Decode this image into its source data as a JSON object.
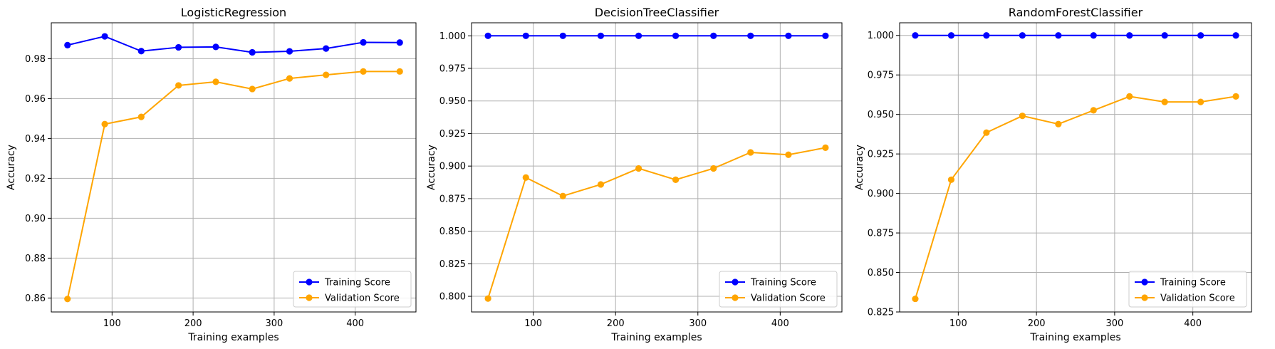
{
  "chart_data": [
    {
      "type": "line",
      "title": "LogisticRegression",
      "xlabel": "Training examples",
      "ylabel": "Accuracy",
      "x": [
        45,
        91,
        136,
        182,
        228,
        273,
        319,
        364,
        410,
        455
      ],
      "series": [
        {
          "name": "Training Score",
          "color": "#0000ff",
          "values": [
            0.9868,
            0.9912,
            0.9838,
            0.9857,
            0.9859,
            0.9832,
            0.9837,
            0.9851,
            0.9882,
            0.9881
          ]
        },
        {
          "name": "Validation Score",
          "color": "#ffa500",
          "values": [
            0.8595,
            0.9472,
            0.9508,
            0.9666,
            0.9684,
            0.9648,
            0.9701,
            0.9719,
            0.9736,
            0.9736
          ]
        }
      ],
      "xlim": [
        25,
        475
      ],
      "ylim": [
        0.853,
        0.998
      ],
      "xticks": [
        100,
        200,
        300,
        400
      ],
      "yticks": [
        0.86,
        0.88,
        0.9,
        0.92,
        0.94,
        0.96,
        0.98
      ],
      "ytick_labels": [
        "0.86",
        "0.88",
        "0.90",
        "0.92",
        "0.94",
        "0.96",
        "0.98"
      ],
      "grid": true,
      "legend_position": "lower-right"
    },
    {
      "type": "line",
      "title": "DecisionTreeClassifier",
      "xlabel": "Training examples",
      "ylabel": "Accuracy",
      "x": [
        45,
        91,
        136,
        182,
        228,
        273,
        319,
        364,
        410,
        455
      ],
      "series": [
        {
          "name": "Training Score",
          "color": "#0000ff",
          "values": [
            1.0,
            1.0,
            1.0,
            1.0,
            1.0,
            1.0,
            1.0,
            1.0,
            1.0,
            1.0
          ]
        },
        {
          "name": "Validation Score",
          "color": "#ffa500",
          "values": [
            0.7983,
            0.8912,
            0.877,
            0.8859,
            0.8982,
            0.8895,
            0.8982,
            0.9105,
            0.9087,
            0.9141
          ]
        }
      ],
      "xlim": [
        25,
        475
      ],
      "ylim": [
        0.788,
        1.01
      ],
      "xticks": [
        100,
        200,
        300,
        400
      ],
      "yticks": [
        0.8,
        0.825,
        0.85,
        0.875,
        0.9,
        0.925,
        0.95,
        0.975,
        1.0
      ],
      "ytick_labels": [
        "0.800",
        "0.825",
        "0.850",
        "0.875",
        "0.900",
        "0.925",
        "0.950",
        "0.975",
        "1.000"
      ],
      "grid": true,
      "legend_position": "lower-right"
    },
    {
      "type": "line",
      "title": "RandomForestClassifier",
      "xlabel": "Training examples",
      "ylabel": "Accuracy",
      "x": [
        45,
        91,
        136,
        182,
        228,
        273,
        319,
        364,
        410,
        455
      ],
      "series": [
        {
          "name": "Training Score",
          "color": "#0000ff",
          "values": [
            1.0,
            1.0,
            1.0,
            1.0,
            1.0,
            1.0,
            1.0,
            1.0,
            1.0,
            1.0
          ]
        },
        {
          "name": "Validation Score",
          "color": "#ffa500",
          "values": [
            0.8333,
            0.9087,
            0.9385,
            0.9491,
            0.9439,
            0.9526,
            0.9614,
            0.9579,
            0.9579,
            0.9614
          ]
        }
      ],
      "xlim": [
        25,
        475
      ],
      "ylim": [
        0.825,
        1.008
      ],
      "xticks": [
        100,
        200,
        300,
        400
      ],
      "yticks": [
        0.825,
        0.85,
        0.875,
        0.9,
        0.925,
        0.95,
        0.975,
        1.0
      ],
      "ytick_labels": [
        "0.825",
        "0.850",
        "0.875",
        "0.900",
        "0.925",
        "0.950",
        "0.975",
        "1.000"
      ],
      "grid": true,
      "legend_position": "lower-right"
    }
  ]
}
